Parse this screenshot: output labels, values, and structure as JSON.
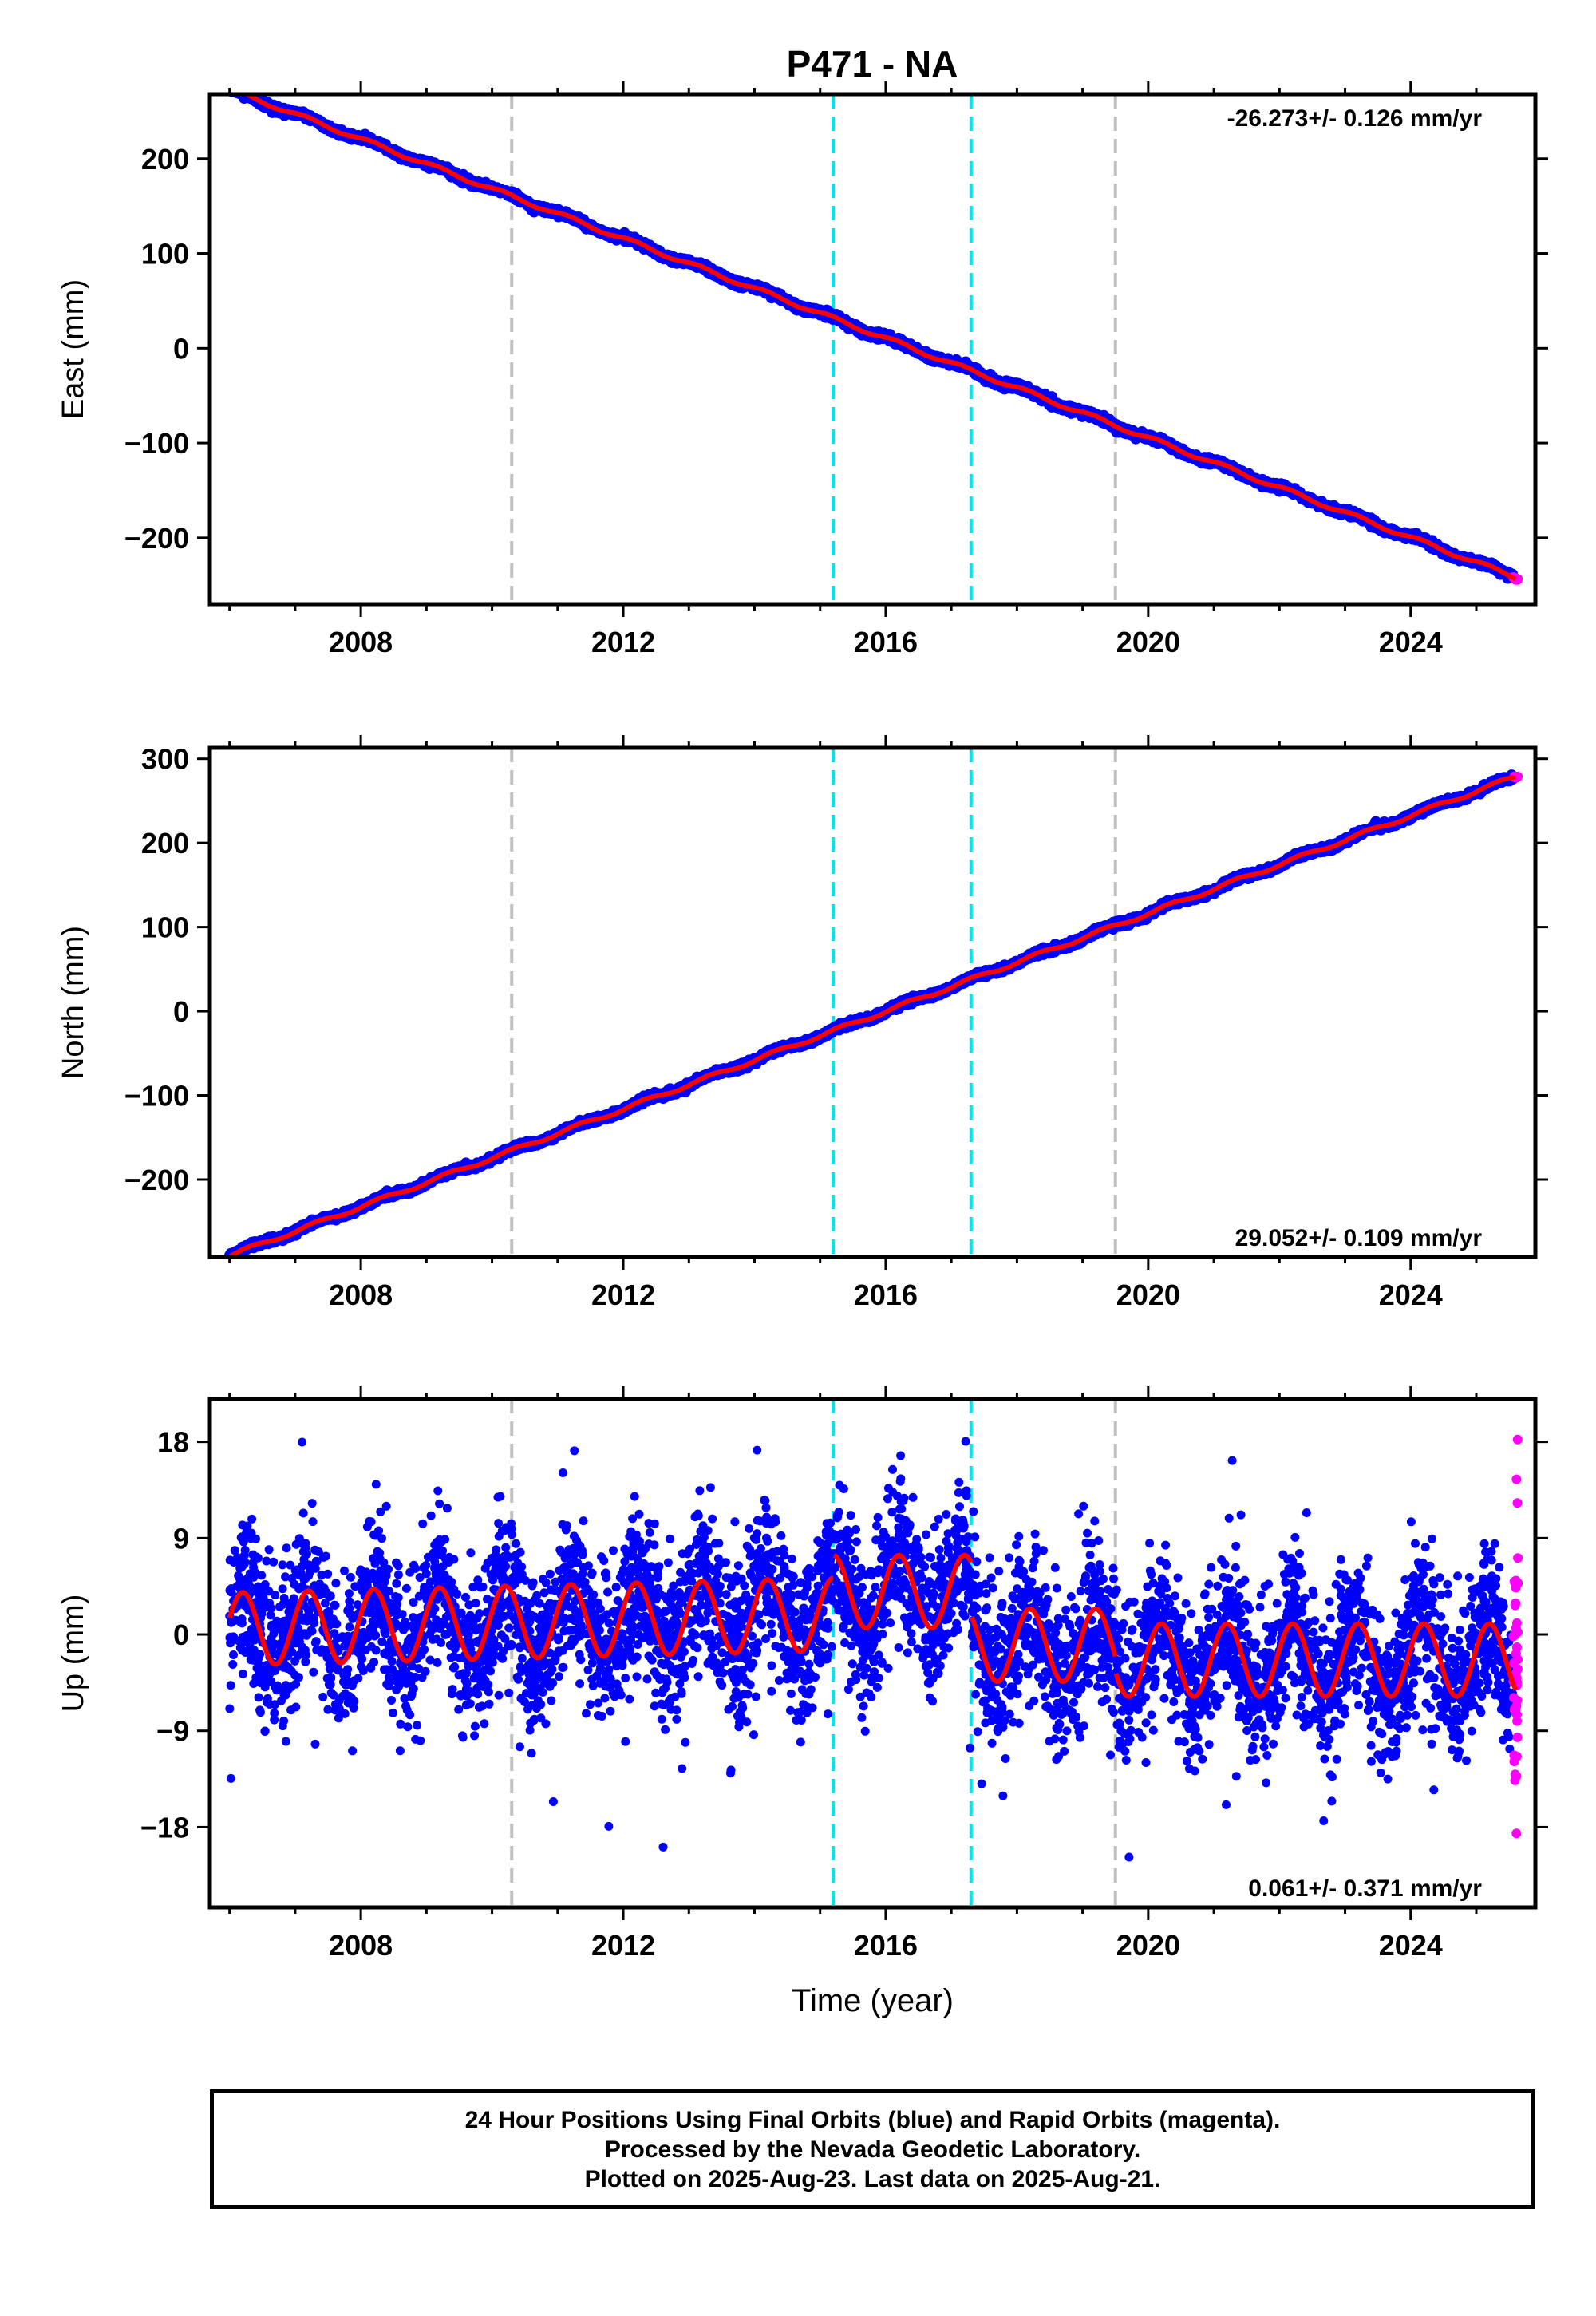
{
  "title": "P471 - NA",
  "footer": {
    "line1": "24 Hour Positions Using Final Orbits (blue) and Rapid Orbits (magenta).",
    "line2": "Processed by the Nevada Geodetic Laboratory.",
    "line3": "Plotted on 2025-Aug-23. Last data on 2025-Aug-21."
  },
  "colors": {
    "final_orbits": "#0000ff",
    "rapid_orbits": "#ff00ff",
    "model": "#ff0000",
    "event_gray": "#c0c0c0",
    "event_cyan": "#00e5ee"
  },
  "chart_data": [
    {
      "type": "scatter",
      "panel": "east",
      "ylabel": "East (mm)",
      "xlabel": "",
      "xlim": [
        2005.7,
        2025.9
      ],
      "ylim": [
        -270,
        268
      ],
      "xticks": [
        2008,
        2012,
        2016,
        2020,
        2024
      ],
      "yticks": [
        200,
        100,
        0,
        -100,
        -200
      ],
      "ytick_labels": [
        "200",
        "100",
        "0",
        "−100",
        "−200"
      ],
      "rate_text": "-26.273+/- 0.126 mm/yr",
      "rate_position": "top-right",
      "event_lines": [
        {
          "x": 2010.3,
          "color": "gray"
        },
        {
          "x": 2015.2,
          "color": "cyan"
        },
        {
          "x": 2017.3,
          "color": "cyan"
        },
        {
          "x": 2019.5,
          "color": "gray"
        }
      ],
      "model": {
        "start": 2006.0,
        "end": 2025.6,
        "t0": 2016.0,
        "value_t0": 10.5,
        "rate": -26.273,
        "annual_sin": 1.8,
        "annual_cos": 1.0
      },
      "final_range": [
        2006.0,
        2025.56
      ],
      "rapid_range": [
        2025.56,
        2025.64
      ],
      "noise": 1.6,
      "grid": false
    },
    {
      "type": "scatter",
      "panel": "north",
      "ylabel": "North (mm)",
      "xlabel": "",
      "xlim": [
        2005.7,
        2025.9
      ],
      "ylim": [
        -292,
        313
      ],
      "xticks": [
        2008,
        2012,
        2016,
        2020,
        2024
      ],
      "yticks": [
        300,
        200,
        100,
        0,
        -100,
        -200
      ],
      "ytick_labels": [
        "300",
        "200",
        "100",
        "0",
        "−100",
        "−200"
      ],
      "rate_text": "29.052+/- 0.109 mm/yr",
      "rate_position": "bottom-right",
      "event_lines": [
        {
          "x": 2010.3,
          "color": "gray"
        },
        {
          "x": 2015.2,
          "color": "cyan"
        },
        {
          "x": 2017.3,
          "color": "cyan"
        },
        {
          "x": 2019.5,
          "color": "gray"
        }
      ],
      "model": {
        "start": 2006.0,
        "end": 2025.6,
        "t0": 2016.0,
        "value_t0": 0.0,
        "rate": 29.052,
        "annual_sin": 2.0,
        "annual_cos": -1.0
      },
      "final_range": [
        2006.0,
        2025.56
      ],
      "rapid_range": [
        2025.56,
        2025.64
      ],
      "noise": 1.6,
      "grid": false
    },
    {
      "type": "scatter",
      "panel": "up",
      "ylabel": "Up (mm)",
      "xlabel": "Time (year)",
      "xlim": [
        2005.7,
        2025.9
      ],
      "ylim": [
        -25.5,
        22.0
      ],
      "xticks": [
        2008,
        2012,
        2016,
        2020,
        2024
      ],
      "yticks": [
        18,
        9,
        0,
        -9,
        -18
      ],
      "ytick_labels": [
        "18",
        "9",
        "0",
        "−9",
        "−18"
      ],
      "rate_text": "0.061+/- 0.371 mm/yr",
      "rate_position": "bottom-right",
      "event_lines": [
        {
          "x": 2010.3,
          "color": "gray"
        },
        {
          "x": 2015.2,
          "color": "cyan"
        },
        {
          "x": 2017.3,
          "color": "cyan"
        },
        {
          "x": 2019.5,
          "color": "gray"
        }
      ],
      "model_segments": [
        {
          "start": 2006.0,
          "end": 2015.2,
          "offset": 0.5,
          "rate": 0.15,
          "amplitude": 3.4,
          "phase_year": 2006.2
        },
        {
          "start": 2015.2,
          "end": 2017.3,
          "offset": 4.0,
          "rate": 0.0,
          "amplitude": 3.4,
          "phase_year": 2006.2
        },
        {
          "start": 2017.3,
          "end": 2019.5,
          "offset": -1.0,
          "rate": 0.0,
          "amplitude": 3.4,
          "phase_year": 2006.2
        },
        {
          "start": 2019.5,
          "end": 2025.6,
          "offset": -2.4,
          "rate": 0.0,
          "amplitude": 3.4,
          "phase_year": 2006.2
        }
      ],
      "final_range": [
        2006.0,
        2025.56
      ],
      "rapid_range": [
        2025.56,
        2025.64
      ],
      "noise": 3.4,
      "grid": false
    }
  ]
}
